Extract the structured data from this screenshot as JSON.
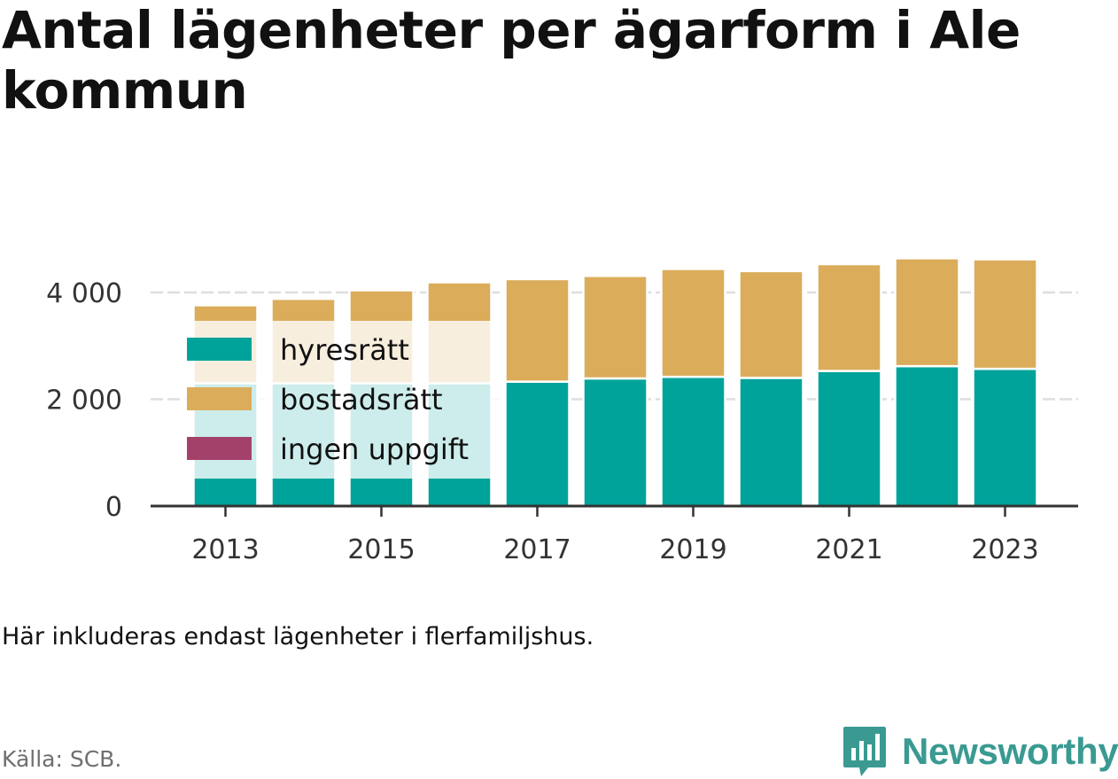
{
  "title": "Antal lägenheter per ägarform i Ale kommun",
  "note": "Här inkluderas endast lägenheter i flerfamiljshus.",
  "source": "Källa: SCB.",
  "brand": {
    "name": "Newsworthy",
    "icon": "newsworthy-logo-icon",
    "color": "#3a9a92"
  },
  "chart_data": {
    "type": "bar",
    "stacked": true,
    "categories": [
      "2013",
      "2014",
      "2015",
      "2016",
      "2017",
      "2018",
      "2019",
      "2020",
      "2021",
      "2022",
      "2023"
    ],
    "x_tick_labels": [
      "2013",
      "2015",
      "2017",
      "2019",
      "2021",
      "2023"
    ],
    "series": [
      {
        "name": "hyresrätt",
        "color": "#00a39a",
        "values": [
          2300,
          2300,
          2300,
          2300,
          2330,
          2390,
          2420,
          2400,
          2530,
          2620,
          2570
        ]
      },
      {
        "name": "bostadsrätt",
        "color": "#dbac5a",
        "values": [
          1460,
          1580,
          1740,
          1890,
          1920,
          1920,
          2020,
          2000,
          2000,
          2020,
          2050
        ]
      },
      {
        "name": "ingen uppgift",
        "color": "#a4416a",
        "values": [
          0,
          0,
          0,
          0,
          0,
          0,
          0,
          0,
          0,
          0,
          0
        ]
      }
    ],
    "y_ticks": [
      0,
      2000,
      4000
    ],
    "y_tick_labels": [
      "0",
      "2 000",
      "4 000"
    ],
    "ylim": [
      0,
      5000
    ],
    "grid": true,
    "legend_position": "top-left inside plot"
  }
}
